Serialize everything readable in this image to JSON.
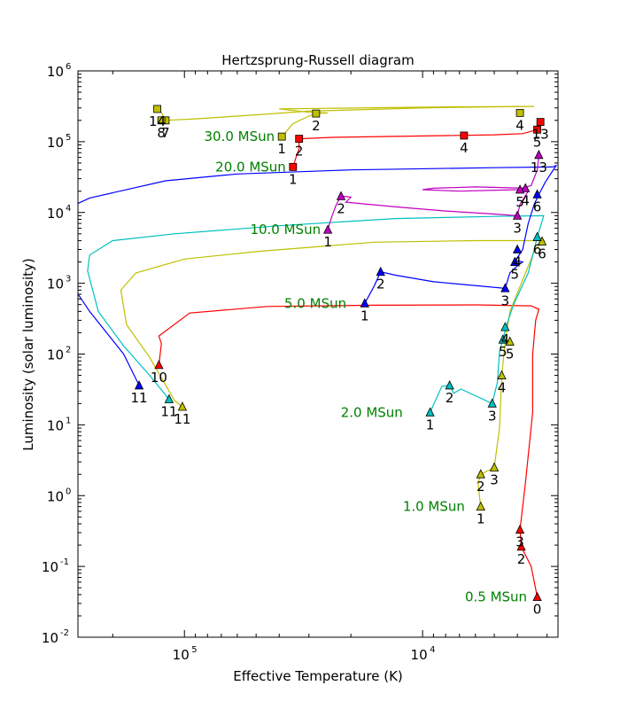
{
  "chart_data": {
    "type": "line",
    "title": "Hertzsprung-Russell diagram",
    "xlabel": "Effective Temperature (K)",
    "ylabel": "Luminosity (solar luminosity)",
    "x_scale": "log",
    "x_reversed": true,
    "xlim": [
      280000,
      2700
    ],
    "y_scale": "log",
    "ylim": [
      0.01,
      1000000
    ],
    "x_ticks": [
      {
        "value": 100000,
        "base": "10",
        "exp": "5"
      },
      {
        "value": 10000,
        "base": "10",
        "exp": "4"
      }
    ],
    "y_ticks": [
      {
        "value": 0.01,
        "base": "10",
        "exp": "-2"
      },
      {
        "value": 0.1,
        "base": "10",
        "exp": "-1"
      },
      {
        "value": 1,
        "base": "10",
        "exp": "0"
      },
      {
        "value": 10,
        "base": "10",
        "exp": "1"
      },
      {
        "value": 100,
        "base": "10",
        "exp": "2"
      },
      {
        "value": 1000,
        "base": "10",
        "exp": "3"
      },
      {
        "value": 10000,
        "base": "10",
        "exp": "4"
      },
      {
        "value": 100000,
        "base": "10",
        "exp": "5"
      },
      {
        "value": 1000000,
        "base": "10",
        "exp": "6"
      }
    ],
    "series": [
      {
        "label": "0.5 MSun",
        "color": "#ff0000",
        "marker": "triangle",
        "label_at": [
          3400,
          0.037
        ],
        "track": [
          [
            3300,
            0.037
          ],
          [
            3500,
            0.1
          ],
          [
            3850,
            0.19
          ],
          [
            3900,
            0.33
          ],
          [
            3700,
            1.5
          ],
          [
            3450,
            15
          ],
          [
            3450,
            100
          ],
          [
            3350,
            300
          ],
          [
            3250,
            430
          ],
          [
            3500,
            480
          ],
          [
            6000,
            495
          ],
          [
            16000,
            490
          ],
          [
            45000,
            470
          ],
          [
            95000,
            380
          ],
          [
            128000,
            180
          ],
          [
            125000,
            140
          ],
          [
            128000,
            70
          ]
        ],
        "points": [
          {
            "label": "0",
            "x": 3300,
            "y": 0.037
          },
          {
            "label": "2",
            "x": 3850,
            "y": 0.19
          },
          {
            "label": "3",
            "x": 3900,
            "y": 0.33
          },
          {
            "label": "10",
            "x": 128000,
            "y": 70
          }
        ]
      },
      {
        "label": "1.0 MSun",
        "color": "#bfbf00",
        "marker": "triangle",
        "label_at": [
          6200,
          0.7
        ],
        "track": [
          [
            5700,
            0.7
          ],
          [
            5850,
            1.5
          ],
          [
            5700,
            2.0
          ],
          [
            5000,
            2.5
          ],
          [
            4750,
            9
          ],
          [
            4650,
            50
          ],
          [
            4500,
            150
          ],
          [
            4300,
            400
          ],
          [
            3400,
            2800
          ],
          [
            3200,
            3700
          ],
          [
            3100,
            4000
          ],
          [
            3700,
            4000
          ],
          [
            6000,
            4000
          ],
          [
            16000,
            3800
          ],
          [
            50000,
            2800
          ],
          [
            100000,
            2200
          ],
          [
            160000,
            1400
          ],
          [
            185000,
            800
          ],
          [
            175000,
            260
          ],
          [
            140000,
            90
          ],
          [
            110000,
            22
          ],
          [
            102000,
            18
          ]
        ],
        "points": [
          {
            "label": "1",
            "x": 5700,
            "y": 0.7
          },
          {
            "label": "2",
            "x": 5700,
            "y": 2.0
          },
          {
            "label": "3",
            "x": 5000,
            "y": 2.5
          },
          {
            "label": "4",
            "x": 4650,
            "y": 50
          },
          {
            "label": "5",
            "x": 4300,
            "y": 150
          },
          {
            "label": "6",
            "x": 3150,
            "y": 3900
          },
          {
            "label": "11",
            "x": 102000,
            "y": 18
          }
        ]
      },
      {
        "label": "2.0 MSun",
        "color": "#00bfbf",
        "marker": "triangle",
        "label_at": [
          11300,
          15
        ],
        "track": [
          [
            9300,
            15
          ],
          [
            8300,
            35
          ],
          [
            7700,
            36
          ],
          [
            7400,
            28
          ],
          [
            6900,
            32
          ],
          [
            5100,
            20
          ],
          [
            4850,
            40
          ],
          [
            4750,
            110
          ],
          [
            4600,
            160
          ],
          [
            4450,
            250
          ],
          [
            4150,
            500
          ],
          [
            3600,
            1400
          ],
          [
            3300,
            4500
          ],
          [
            3100,
            9000
          ],
          [
            5000,
            8800
          ],
          [
            13000,
            8200
          ],
          [
            40000,
            6500
          ],
          [
            110000,
            5000
          ],
          [
            200000,
            4000
          ],
          [
            250000,
            2500
          ],
          [
            255000,
            1500
          ],
          [
            230000,
            400
          ],
          [
            180000,
            130
          ],
          [
            140000,
            50
          ],
          [
            116000,
            23
          ]
        ],
        "points": [
          {
            "label": "1",
            "x": 9300,
            "y": 15
          },
          {
            "label": "2",
            "x": 7700,
            "y": 36
          },
          {
            "label": "3",
            "x": 5100,
            "y": 20
          },
          {
            "label": "4",
            "x": 4500,
            "y": 240
          },
          {
            "label": "5",
            "x": 4600,
            "y": 160
          },
          {
            "label": "6",
            "x": 3300,
            "y": 4500
          },
          {
            "label": "11",
            "x": 116000,
            "y": 23
          }
        ]
      },
      {
        "label": "5.0 MSun",
        "color": "#0000ff",
        "marker": "triangle",
        "label_at": [
          19500,
          520
        ],
        "track": [
          [
            17500,
            520
          ],
          [
            16000,
            900
          ],
          [
            15000,
            1450
          ],
          [
            13000,
            1300
          ],
          [
            9000,
            1050
          ],
          [
            4500,
            850
          ],
          [
            4300,
            1400
          ],
          [
            4050,
            1700
          ],
          [
            3800,
            2000
          ],
          [
            4100,
            2100
          ],
          [
            4000,
            2300
          ],
          [
            3800,
            3000
          ],
          [
            3600,
            7000
          ],
          [
            3400,
            13000
          ],
          [
            3250,
            18000
          ],
          [
            3050,
            27000
          ],
          [
            2800,
            42000
          ],
          [
            2750,
            46000
          ],
          [
            2850,
            44000
          ],
          [
            5000,
            43000
          ],
          [
            20000,
            40000
          ],
          [
            60000,
            35000
          ],
          [
            120000,
            28000
          ],
          [
            250000,
            16000
          ],
          [
            300000,
            12000
          ],
          [
            300000,
            1000
          ],
          [
            250000,
            400
          ],
          [
            180000,
            100
          ],
          [
            155000,
            36
          ]
        ],
        "points": [
          {
            "label": "1",
            "x": 17500,
            "y": 520
          },
          {
            "label": "2",
            "x": 15000,
            "y": 1450
          },
          {
            "label": "3",
            "x": 4500,
            "y": 850
          },
          {
            "label": "4",
            "x": 4000,
            "y": 3000
          },
          {
            "label": "5",
            "x": 4100,
            "y": 2000
          },
          {
            "label": "6",
            "x": 3300,
            "y": 18000
          },
          {
            "label": "11",
            "x": 155000,
            "y": 36
          }
        ]
      },
      {
        "label": "10.0 MSun",
        "color": "#bf00bf",
        "marker": "triangle",
        "label_at": [
          25000,
          5700
        ],
        "track": [
          [
            25000,
            5700
          ],
          [
            24000,
            9000
          ],
          [
            23000,
            13000
          ],
          [
            22000,
            17000
          ],
          [
            20000,
            16500
          ],
          [
            21000,
            14000
          ],
          [
            13000,
            12000
          ],
          [
            8000,
            10500
          ],
          [
            5000,
            9500
          ],
          [
            4000,
            9000
          ],
          [
            3900,
            13000
          ],
          [
            3600,
            20000
          ],
          [
            3700,
            22000
          ],
          [
            6000,
            23000
          ],
          [
            9000,
            22000
          ],
          [
            10000,
            21000
          ],
          [
            7000,
            20000
          ],
          [
            4000,
            21000
          ],
          [
            3500,
            24000
          ],
          [
            3300,
            40000
          ],
          [
            3250,
            65000
          ]
        ],
        "points": [
          {
            "label": "1",
            "x": 25000,
            "y": 5700
          },
          {
            "label": "2",
            "x": 22000,
            "y": 17000
          },
          {
            "label": "3",
            "x": 4000,
            "y": 9000
          },
          {
            "label": "4",
            "x": 3700,
            "y": 22000
          },
          {
            "label": "5",
            "x": 3900,
            "y": 21000
          },
          {
            "label": "13",
            "x": 3250,
            "y": 65000
          }
        ]
      },
      {
        "label": "20.0 MSun",
        "color": "#ff0000",
        "marker": "square",
        "label_at": [
          35000,
          44000
        ],
        "track": [
          [
            35000,
            44000
          ],
          [
            34000,
            60000
          ],
          [
            33000,
            80000
          ],
          [
            33000,
            110000
          ],
          [
            24000,
            115000
          ],
          [
            15000,
            118000
          ],
          [
            8000,
            122000
          ],
          [
            5000,
            125000
          ],
          [
            3800,
            130000
          ],
          [
            3300,
            148000
          ],
          [
            3200,
            190000
          ]
        ],
        "points": [
          {
            "label": "1",
            "x": 35000,
            "y": 44000
          },
          {
            "label": "2",
            "x": 33000,
            "y": 110000
          },
          {
            "label": "4",
            "x": 6700,
            "y": 122000
          },
          {
            "label": "5",
            "x": 3300,
            "y": 148000
          },
          {
            "label": "13",
            "x": 3200,
            "y": 190000
          }
        ]
      },
      {
        "label": "30.0 MSun",
        "color": "#bfbf00",
        "marker": "square",
        "label_at": [
          39000,
          118000
        ],
        "track": [
          [
            39000,
            118000
          ],
          [
            35000,
            180000
          ],
          [
            30000,
            230000
          ],
          [
            28000,
            250000
          ],
          [
            25000,
            255000
          ],
          [
            30000,
            260000
          ],
          [
            40000,
            290000
          ],
          [
            8000,
            310000
          ],
          [
            3400,
            315000
          ],
          [
            4500,
            312000
          ],
          [
            10000,
            300000
          ],
          [
            30000,
            270000
          ],
          [
            60000,
            230000
          ],
          [
            90000,
            210000
          ],
          [
            120000,
            200000
          ],
          [
            125000,
            260000
          ],
          [
            130000,
            290000
          ]
        ],
        "points": [
          {
            "label": "1",
            "x": 39000,
            "y": 118000
          },
          {
            "label": "2",
            "x": 28000,
            "y": 250000
          },
          {
            "label": "4",
            "x": 3900,
            "y": 255000
          },
          {
            "label": "7",
            "x": 120000,
            "y": 200000
          },
          {
            "label": "8",
            "x": 125000,
            "y": 200000
          },
          {
            "label": "14",
            "x": 130000,
            "y": 290000
          }
        ]
      }
    ]
  }
}
